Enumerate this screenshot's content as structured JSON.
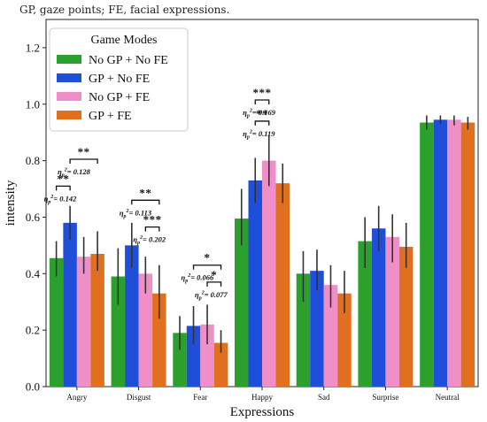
{
  "caption": "GP, gaze points; FE, facial expressions.",
  "chart_data": {
    "type": "bar",
    "categories": [
      "Angry",
      "Disgust",
      "Fear",
      "Happy",
      "Sad",
      "Surprise",
      "Neutral"
    ],
    "xlabel": "Expressions",
    "ylabel": "intensity",
    "ylim": [
      0,
      1.3
    ],
    "yticks": [
      "0.0",
      "0.2",
      "0.4",
      "0.6",
      "0.8",
      "1.0",
      "1.2"
    ],
    "legend_title": "Game Modes",
    "legend_position": "top-left",
    "series": [
      {
        "name": "No GP + No FE",
        "color": "#2ca02c",
        "values": [
          0.455,
          0.39,
          0.19,
          0.595,
          0.4,
          0.515,
          0.935
        ],
        "err_low": [
          0.39,
          0.29,
          0.13,
          0.5,
          0.3,
          0.42,
          0.91
        ],
        "err_high": [
          0.515,
          0.49,
          0.25,
          0.7,
          0.48,
          0.6,
          0.96
        ]
      },
      {
        "name": "GP + No FE",
        "color": "#1f4fd8",
        "values": [
          0.58,
          0.5,
          0.215,
          0.73,
          0.41,
          0.56,
          0.945
        ],
        "err_low": [
          0.52,
          0.42,
          0.15,
          0.65,
          0.34,
          0.48,
          0.93
        ],
        "err_high": [
          0.64,
          0.58,
          0.285,
          0.81,
          0.485,
          0.64,
          0.96
        ]
      },
      {
        "name": "No GP + FE",
        "color": "#f08fc7",
        "values": [
          0.46,
          0.4,
          0.22,
          0.8,
          0.36,
          0.53,
          0.945
        ],
        "err_low": [
          0.4,
          0.33,
          0.15,
          0.71,
          0.28,
          0.44,
          0.925
        ],
        "err_high": [
          0.53,
          0.46,
          0.29,
          0.89,
          0.43,
          0.61,
          0.96
        ]
      },
      {
        "name": "GP + FE",
        "color": "#e0701f",
        "values": [
          0.47,
          0.33,
          0.155,
          0.72,
          0.33,
          0.495,
          0.935
        ],
        "err_low": [
          0.41,
          0.24,
          0.12,
          0.65,
          0.26,
          0.42,
          0.91
        ],
        "err_high": [
          0.55,
          0.43,
          0.2,
          0.79,
          0.41,
          0.58,
          0.955
        ]
      }
    ],
    "annotations": [
      {
        "category": 0,
        "from": 0,
        "to": 1,
        "bar_y": 0.71,
        "stars": "**",
        "eta": "= 0.142"
      },
      {
        "category": 0,
        "from": 1,
        "to": 3,
        "bar_y": 0.805,
        "stars": "**",
        "eta": "= 0.128"
      },
      {
        "category": 1,
        "from": 1,
        "to": 3,
        "bar_y": 0.66,
        "stars": "**",
        "eta": "= 0.113"
      },
      {
        "category": 1,
        "from": 2,
        "to": 3,
        "bar_y": 0.565,
        "stars": "***",
        "eta": "= 0.202"
      },
      {
        "category": 2,
        "from": 2,
        "to": 3,
        "bar_y": 0.37,
        "stars": "*",
        "eta": "= 0.077"
      },
      {
        "category": 2,
        "from": 1,
        "to": 3,
        "bar_y": 0.43,
        "stars": "*",
        "eta": "= 0.066"
      },
      {
        "category": 3,
        "from": 1,
        "to": 2,
        "bar_y": 0.94,
        "stars": "**",
        "eta": "= 0.119"
      },
      {
        "category": 3,
        "from": 1,
        "to": 2,
        "bar_y": 1.015,
        "stars": "***",
        "eta": "= 0.169"
      }
    ],
    "eta_symbol": "η",
    "eta_sub": "p",
    "eta_sup": "2"
  }
}
